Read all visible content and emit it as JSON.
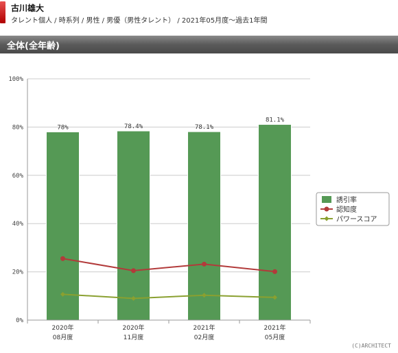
{
  "header": {
    "title": "古川雄大",
    "subtitle": "タレント個人 / 時系列 / 男性 / 男優（男性タレント） / 2021年05月度～過去1年間"
  },
  "section": {
    "title": "全体(全年齢)"
  },
  "copyright": "(C)ARCHITECT",
  "colors": {
    "bar": "#559955",
    "recognition": "#b23a3a",
    "power": "#8aa030"
  },
  "chart_data": {
    "type": "bar",
    "categories": [
      [
        "2020年",
        "08月度"
      ],
      [
        "2020年",
        "11月度"
      ],
      [
        "2021年",
        "02月度"
      ],
      [
        "2021年",
        "05月度"
      ]
    ],
    "ylim": [
      0,
      100
    ],
    "yticks": [
      "0%",
      "20%",
      "40%",
      "60%",
      "80%",
      "100%"
    ],
    "grid": true,
    "legend_position": "right",
    "series": [
      {
        "name": "誘引率",
        "type": "bar",
        "values": [
          78,
          78.4,
          78.1,
          81.1
        ],
        "labels": [
          "78%",
          "78.4%",
          "78.1%",
          "81.1%"
        ]
      },
      {
        "name": "認知度",
        "type": "line",
        "values": [
          25.5,
          20.5,
          23.2,
          20.1
        ]
      },
      {
        "name": "パワースコア",
        "type": "line",
        "values": [
          10.7,
          9.0,
          10.3,
          9.4
        ]
      }
    ]
  }
}
